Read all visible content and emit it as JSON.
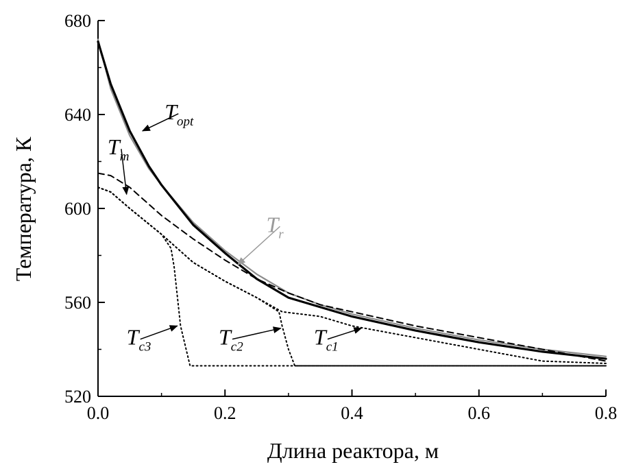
{
  "chart_data": {
    "type": "line",
    "title": "",
    "xlabel": "Длина реактора, м",
    "ylabel": "Температура, К",
    "xlim": [
      0,
      0.8
    ],
    "ylim": [
      520,
      680
    ],
    "xticks": [
      0.0,
      0.2,
      0.4,
      0.6,
      0.8
    ],
    "xtick_labels": [
      "0.0",
      "0.2",
      "0.4",
      "0.6",
      "0.8"
    ],
    "yticks": [
      520,
      560,
      600,
      640,
      680
    ],
    "ytick_labels": [
      "520",
      "560",
      "600",
      "640",
      "680"
    ],
    "grid": false,
    "legend": "none",
    "series": [
      {
        "id": "t-opt",
        "style": "solid-thick",
        "color": "#000000",
        "x": [
          0.0,
          0.02,
          0.05,
          0.08,
          0.1,
          0.15,
          0.2,
          0.25,
          0.3,
          0.35,
          0.4,
          0.5,
          0.6,
          0.7,
          0.8
        ],
        "y": [
          671,
          653,
          633,
          618,
          610,
          593,
          581,
          570,
          562,
          558,
          554,
          548,
          543,
          539,
          536
        ]
      },
      {
        "id": "t-r",
        "style": "solid",
        "color": "#8c8c8c",
        "x": [
          0.0,
          0.02,
          0.05,
          0.08,
          0.1,
          0.15,
          0.2,
          0.25,
          0.3,
          0.35,
          0.4,
          0.5,
          0.6,
          0.7,
          0.8
        ],
        "y": [
          672,
          651,
          631,
          617,
          610,
          594,
          582,
          572,
          564,
          559,
          555,
          549,
          544,
          540,
          537
        ]
      },
      {
        "id": "t-m",
        "style": "dashed",
        "color": "#000000",
        "x": [
          0.0,
          0.02,
          0.05,
          0.1,
          0.15,
          0.2,
          0.25,
          0.3,
          0.35,
          0.4,
          0.5,
          0.6,
          0.7,
          0.8
        ],
        "y": [
          615,
          614,
          609,
          597,
          587,
          578,
          570,
          564,
          559,
          556,
          550,
          545,
          540,
          535
        ]
      },
      {
        "id": "t-c1",
        "style": "dotted",
        "color": "#000000",
        "x": [
          0.0,
          0.02,
          0.05,
          0.1,
          0.15,
          0.2,
          0.25,
          0.29,
          0.32,
          0.35,
          0.4,
          0.5,
          0.6,
          0.7,
          0.8
        ],
        "y": [
          609,
          607,
          600,
          589,
          577,
          569,
          562,
          556,
          555,
          554,
          550,
          545,
          540,
          535,
          534
        ]
      },
      {
        "id": "t-c2",
        "style": "dotted",
        "color": "#000000",
        "x": [
          0.0,
          0.02,
          0.05,
          0.1,
          0.15,
          0.2,
          0.25,
          0.285,
          0.29,
          0.3,
          0.31,
          0.8
        ],
        "y": [
          609,
          607,
          600,
          589,
          577,
          569,
          562,
          556,
          550,
          540,
          533,
          533
        ]
      },
      {
        "id": "t-c3",
        "style": "dotted",
        "color": "#000000",
        "x": [
          0.0,
          0.02,
          0.05,
          0.1,
          0.115,
          0.12,
          0.13,
          0.145,
          0.8
        ],
        "y": [
          609,
          607,
          600,
          589,
          583,
          575,
          550,
          533,
          533
        ]
      }
    ],
    "annotations": [
      {
        "id": "t-opt",
        "main": "T",
        "sub": "opt",
        "color": "#000000",
        "x": 0.105,
        "y": 638,
        "arrow_to": [
          0.07,
          633
        ]
      },
      {
        "id": "t-m",
        "main": "T",
        "sub": "m",
        "color": "#000000",
        "x": 0.015,
        "y": 623,
        "arrow_to": [
          0.045,
          606
        ]
      },
      {
        "id": "t-r",
        "main": "T",
        "sub": "r",
        "color": "#9a9a9a",
        "x": 0.265,
        "y": 590,
        "arrow_to": [
          0.22,
          576
        ]
      },
      {
        "id": "t-c3",
        "main": "T",
        "sub": "c3",
        "color": "#000000",
        "x": 0.045,
        "y": 542,
        "arrow_to": [
          0.125,
          550
        ]
      },
      {
        "id": "t-c2",
        "main": "T",
        "sub": "c2",
        "color": "#000000",
        "x": 0.19,
        "y": 542,
        "arrow_to": [
          0.288,
          549
        ]
      },
      {
        "id": "t-c1",
        "main": "T",
        "sub": "c1",
        "color": "#000000",
        "x": 0.34,
        "y": 542,
        "arrow_to": [
          0.415,
          549
        ]
      }
    ]
  }
}
